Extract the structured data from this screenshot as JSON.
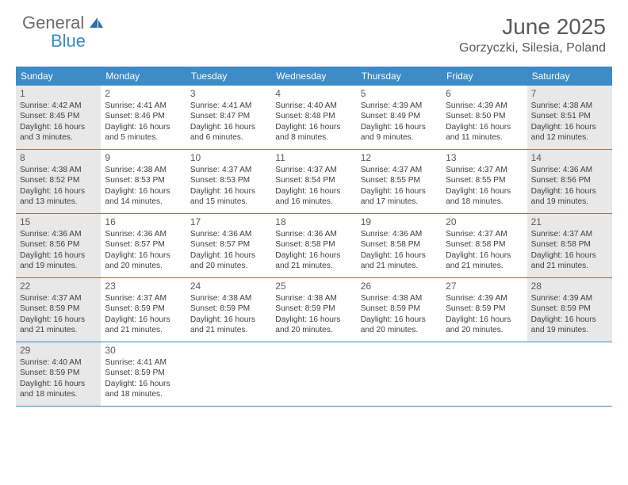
{
  "brand": {
    "part1": "General",
    "part2": "Blue"
  },
  "title": "June 2025",
  "location": "Gorzyczki, Silesia, Poland",
  "colors": {
    "header_bar": "#3d8bc7",
    "shaded_bg": "#e8e8e8",
    "text": "#404040",
    "title_text": "#5a5a5a",
    "logo_gray": "#6b6b6b",
    "logo_blue": "#3b8bc4"
  },
  "typography": {
    "title_fontsize": 28,
    "location_fontsize": 16,
    "dow_fontsize": 12,
    "daynum_fontsize": 12,
    "detail_fontsize": 10.2
  },
  "dow": [
    "Sunday",
    "Monday",
    "Tuesday",
    "Wednesday",
    "Thursday",
    "Friday",
    "Saturday"
  ],
  "weeks": [
    [
      {
        "n": "1",
        "shaded": true,
        "sunrise": "Sunrise: 4:42 AM",
        "sunset": "Sunset: 8:45 PM",
        "day1": "Daylight: 16 hours",
        "day2": "and 3 minutes."
      },
      {
        "n": "2",
        "shaded": false,
        "sunrise": "Sunrise: 4:41 AM",
        "sunset": "Sunset: 8:46 PM",
        "day1": "Daylight: 16 hours",
        "day2": "and 5 minutes."
      },
      {
        "n": "3",
        "shaded": false,
        "sunrise": "Sunrise: 4:41 AM",
        "sunset": "Sunset: 8:47 PM",
        "day1": "Daylight: 16 hours",
        "day2": "and 6 minutes."
      },
      {
        "n": "4",
        "shaded": false,
        "sunrise": "Sunrise: 4:40 AM",
        "sunset": "Sunset: 8:48 PM",
        "day1": "Daylight: 16 hours",
        "day2": "and 8 minutes."
      },
      {
        "n": "5",
        "shaded": false,
        "sunrise": "Sunrise: 4:39 AM",
        "sunset": "Sunset: 8:49 PM",
        "day1": "Daylight: 16 hours",
        "day2": "and 9 minutes."
      },
      {
        "n": "6",
        "shaded": false,
        "sunrise": "Sunrise: 4:39 AM",
        "sunset": "Sunset: 8:50 PM",
        "day1": "Daylight: 16 hours",
        "day2": "and 11 minutes."
      },
      {
        "n": "7",
        "shaded": true,
        "sunrise": "Sunrise: 4:38 AM",
        "sunset": "Sunset: 8:51 PM",
        "day1": "Daylight: 16 hours",
        "day2": "and 12 minutes."
      }
    ],
    [
      {
        "n": "8",
        "shaded": true,
        "sunrise": "Sunrise: 4:38 AM",
        "sunset": "Sunset: 8:52 PM",
        "day1": "Daylight: 16 hours",
        "day2": "and 13 minutes."
      },
      {
        "n": "9",
        "shaded": false,
        "sunrise": "Sunrise: 4:38 AM",
        "sunset": "Sunset: 8:53 PM",
        "day1": "Daylight: 16 hours",
        "day2": "and 14 minutes."
      },
      {
        "n": "10",
        "shaded": false,
        "sunrise": "Sunrise: 4:37 AM",
        "sunset": "Sunset: 8:53 PM",
        "day1": "Daylight: 16 hours",
        "day2": "and 15 minutes."
      },
      {
        "n": "11",
        "shaded": false,
        "sunrise": "Sunrise: 4:37 AM",
        "sunset": "Sunset: 8:54 PM",
        "day1": "Daylight: 16 hours",
        "day2": "and 16 minutes."
      },
      {
        "n": "12",
        "shaded": false,
        "sunrise": "Sunrise: 4:37 AM",
        "sunset": "Sunset: 8:55 PM",
        "day1": "Daylight: 16 hours",
        "day2": "and 17 minutes."
      },
      {
        "n": "13",
        "shaded": false,
        "sunrise": "Sunrise: 4:37 AM",
        "sunset": "Sunset: 8:55 PM",
        "day1": "Daylight: 16 hours",
        "day2": "and 18 minutes."
      },
      {
        "n": "14",
        "shaded": true,
        "sunrise": "Sunrise: 4:36 AM",
        "sunset": "Sunset: 8:56 PM",
        "day1": "Daylight: 16 hours",
        "day2": "and 19 minutes."
      }
    ],
    [
      {
        "n": "15",
        "shaded": true,
        "sunrise": "Sunrise: 4:36 AM",
        "sunset": "Sunset: 8:56 PM",
        "day1": "Daylight: 16 hours",
        "day2": "and 19 minutes."
      },
      {
        "n": "16",
        "shaded": false,
        "sunrise": "Sunrise: 4:36 AM",
        "sunset": "Sunset: 8:57 PM",
        "day1": "Daylight: 16 hours",
        "day2": "and 20 minutes."
      },
      {
        "n": "17",
        "shaded": false,
        "sunrise": "Sunrise: 4:36 AM",
        "sunset": "Sunset: 8:57 PM",
        "day1": "Daylight: 16 hours",
        "day2": "and 20 minutes."
      },
      {
        "n": "18",
        "shaded": false,
        "sunrise": "Sunrise: 4:36 AM",
        "sunset": "Sunset: 8:58 PM",
        "day1": "Daylight: 16 hours",
        "day2": "and 21 minutes."
      },
      {
        "n": "19",
        "shaded": false,
        "sunrise": "Sunrise: 4:36 AM",
        "sunset": "Sunset: 8:58 PM",
        "day1": "Daylight: 16 hours",
        "day2": "and 21 minutes."
      },
      {
        "n": "20",
        "shaded": false,
        "sunrise": "Sunrise: 4:37 AM",
        "sunset": "Sunset: 8:58 PM",
        "day1": "Daylight: 16 hours",
        "day2": "and 21 minutes."
      },
      {
        "n": "21",
        "shaded": true,
        "sunrise": "Sunrise: 4:37 AM",
        "sunset": "Sunset: 8:58 PM",
        "day1": "Daylight: 16 hours",
        "day2": "and 21 minutes."
      }
    ],
    [
      {
        "n": "22",
        "shaded": true,
        "sunrise": "Sunrise: 4:37 AM",
        "sunset": "Sunset: 8:59 PM",
        "day1": "Daylight: 16 hours",
        "day2": "and 21 minutes."
      },
      {
        "n": "23",
        "shaded": false,
        "sunrise": "Sunrise: 4:37 AM",
        "sunset": "Sunset: 8:59 PM",
        "day1": "Daylight: 16 hours",
        "day2": "and 21 minutes."
      },
      {
        "n": "24",
        "shaded": false,
        "sunrise": "Sunrise: 4:38 AM",
        "sunset": "Sunset: 8:59 PM",
        "day1": "Daylight: 16 hours",
        "day2": "and 21 minutes."
      },
      {
        "n": "25",
        "shaded": false,
        "sunrise": "Sunrise: 4:38 AM",
        "sunset": "Sunset: 8:59 PM",
        "day1": "Daylight: 16 hours",
        "day2": "and 20 minutes."
      },
      {
        "n": "26",
        "shaded": false,
        "sunrise": "Sunrise: 4:38 AM",
        "sunset": "Sunset: 8:59 PM",
        "day1": "Daylight: 16 hours",
        "day2": "and 20 minutes."
      },
      {
        "n": "27",
        "shaded": false,
        "sunrise": "Sunrise: 4:39 AM",
        "sunset": "Sunset: 8:59 PM",
        "day1": "Daylight: 16 hours",
        "day2": "and 20 minutes."
      },
      {
        "n": "28",
        "shaded": true,
        "sunrise": "Sunrise: 4:39 AM",
        "sunset": "Sunset: 8:59 PM",
        "day1": "Daylight: 16 hours",
        "day2": "and 19 minutes."
      }
    ],
    [
      {
        "n": "29",
        "shaded": true,
        "sunrise": "Sunrise: 4:40 AM",
        "sunset": "Sunset: 8:59 PM",
        "day1": "Daylight: 16 hours",
        "day2": "and 18 minutes."
      },
      {
        "n": "30",
        "shaded": false,
        "sunrise": "Sunrise: 4:41 AM",
        "sunset": "Sunset: 8:59 PM",
        "day1": "Daylight: 16 hours",
        "day2": "and 18 minutes."
      },
      {
        "empty": true
      },
      {
        "empty": true
      },
      {
        "empty": true
      },
      {
        "empty": true
      },
      {
        "empty": true
      }
    ]
  ]
}
